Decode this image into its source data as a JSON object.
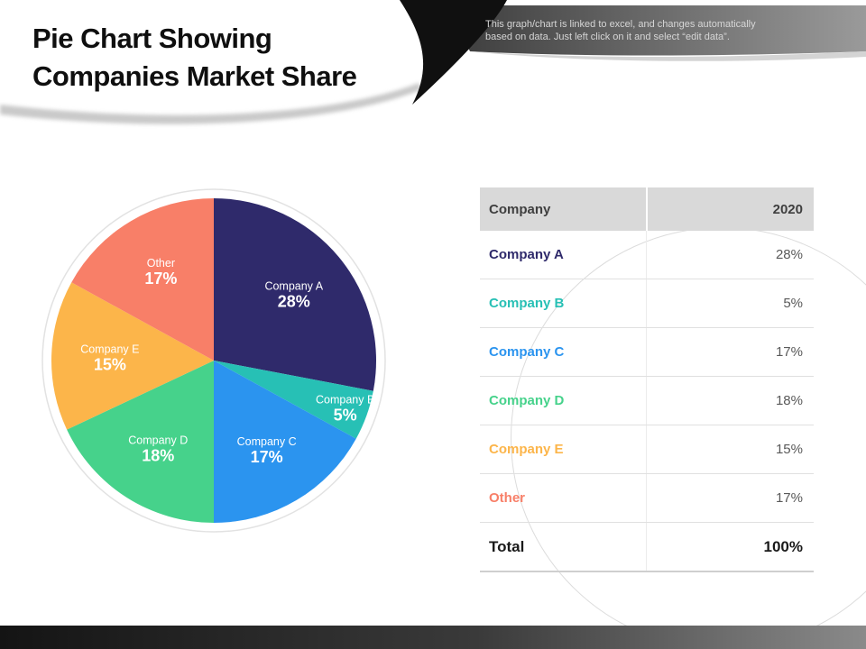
{
  "slide": {
    "title_line1": "Pie Chart Showing",
    "title_line2": "Companies Market Share",
    "note_line1": "This graph/chart is linked to excel,  and changes automatically",
    "note_line2": "based on data. Just left click on it and select “edit data”."
  },
  "chart_data": {
    "type": "pie",
    "title": "Pie Chart Showing Companies Market Share",
    "labels": [
      "Company A",
      "Company B",
      "Company C",
      "Company D",
      "Company E",
      "Other"
    ],
    "values": [
      28,
      5,
      17,
      18,
      15,
      17
    ],
    "unit": "%",
    "colors": [
      "#2f2a6b",
      "#27c0b5",
      "#2b94ef",
      "#46d28b",
      "#fcb54a",
      "#f87f68"
    ],
    "start_angle": "top",
    "direction": "clockwise",
    "labels_position": "inside slices, name above bold percent",
    "legend": "none"
  },
  "table": {
    "header": {
      "company": "Company",
      "year": "2020"
    },
    "rows": [
      {
        "name": "Company A",
        "value": "28%",
        "color": "#2f2a6b"
      },
      {
        "name": "Company B",
        "value": "5%",
        "color": "#27c0b5"
      },
      {
        "name": "Company C",
        "value": "17%",
        "color": "#2b94ef"
      },
      {
        "name": "Company D",
        "value": "18%",
        "color": "#46d28b"
      },
      {
        "name": "Company E",
        "value": "15%",
        "color": "#fcb54a"
      },
      {
        "name": "Other",
        "value": "17%",
        "color": "#f87f68"
      }
    ],
    "total": {
      "label": "Total",
      "value": "100%"
    }
  }
}
